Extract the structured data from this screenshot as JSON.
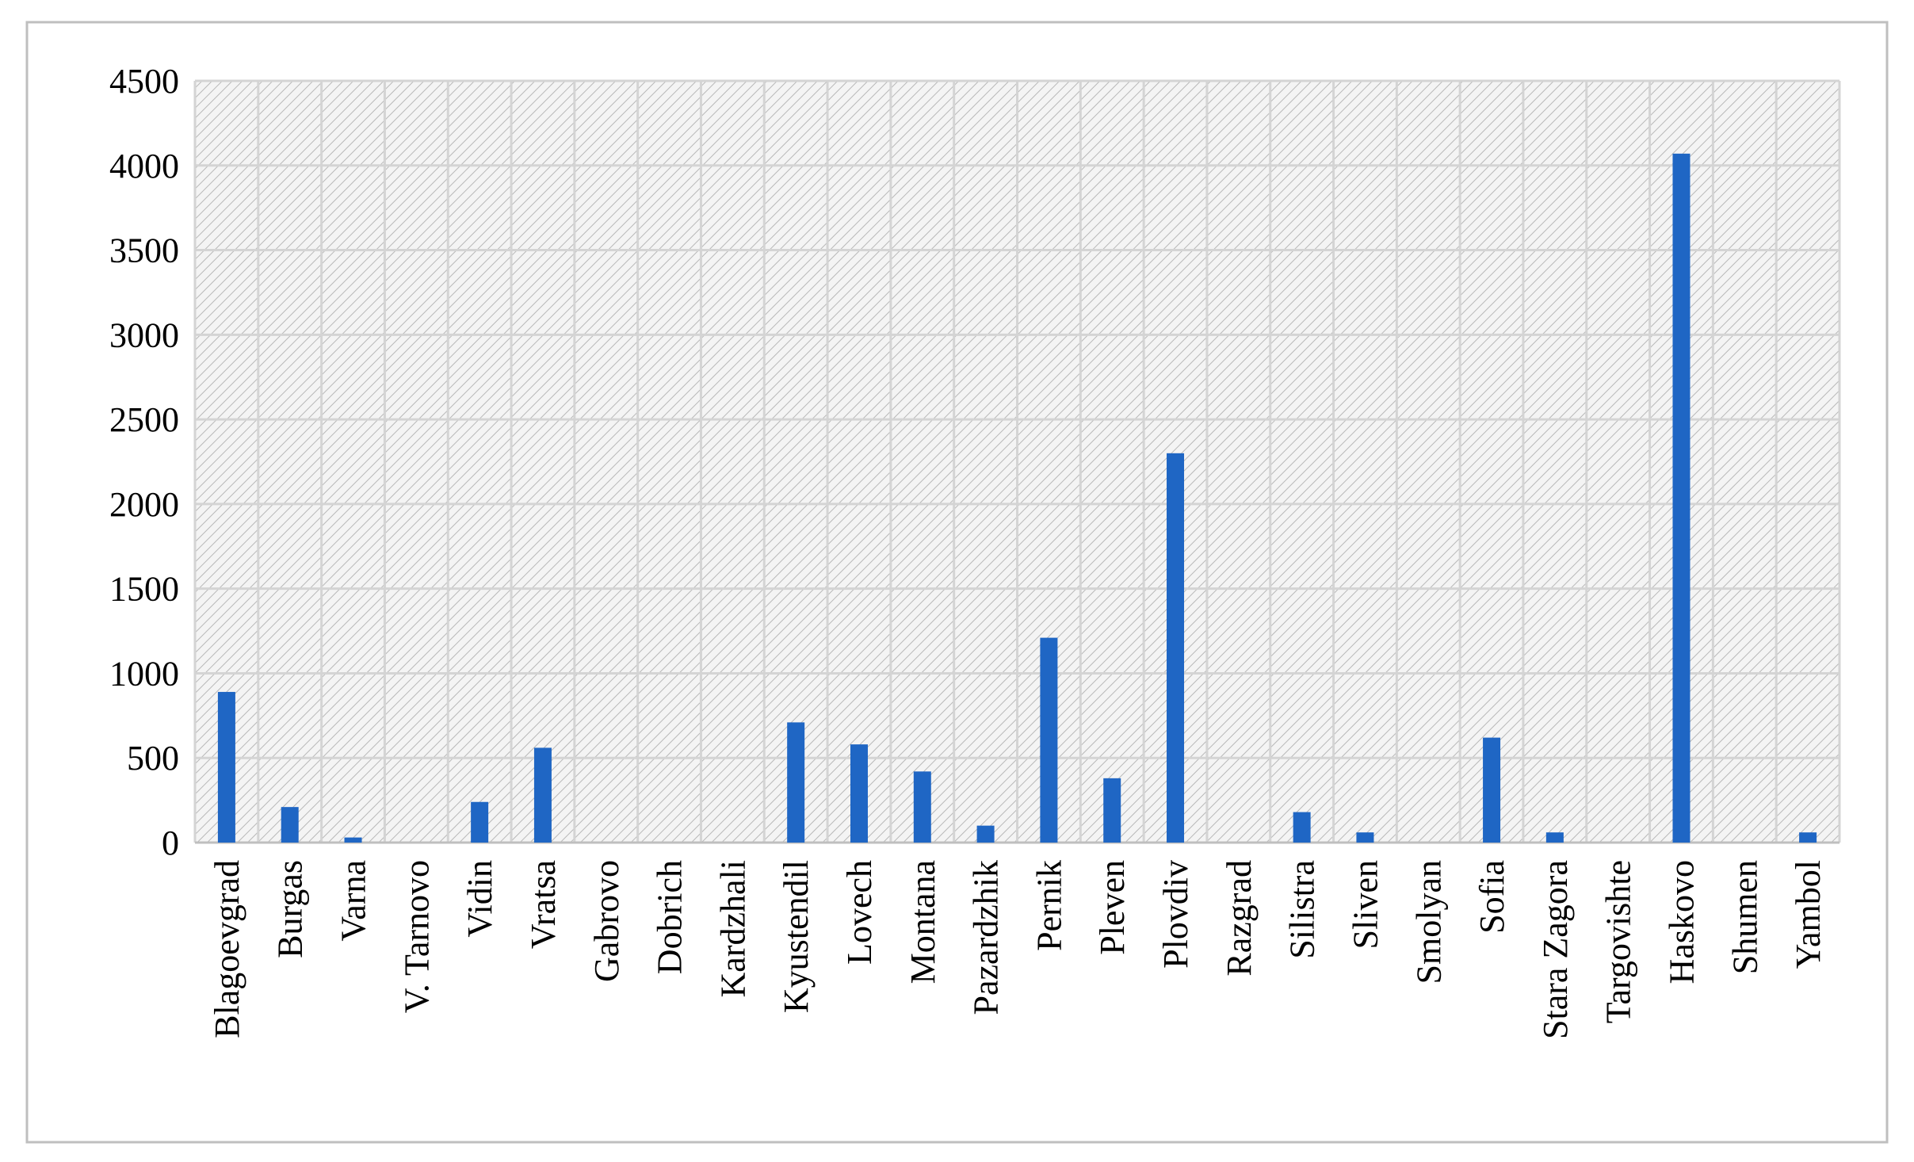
{
  "chart_data": {
    "type": "bar",
    "categories": [
      "Blagoevgrad",
      "Burgas",
      "Varna",
      "V. Tarnovo",
      "Vidin",
      "Vratsa",
      "Gabrovo",
      "Dobrich",
      "Kardzhali",
      "Kyustendil",
      "Lovech",
      "Montana",
      "Pazardzhik",
      "Pernik",
      "Pleven",
      "Plovdiv",
      "Razgrad",
      "Silistra",
      "Sliven",
      "Smolyan",
      "Sofia",
      "Stara Zagora",
      "Targovishte",
      "Haskovo",
      "Shumen",
      "Yambol"
    ],
    "values": [
      890,
      210,
      30,
      0,
      240,
      560,
      0,
      0,
      0,
      710,
      580,
      420,
      100,
      1210,
      380,
      2300,
      0,
      180,
      60,
      0,
      620,
      60,
      0,
      4070,
      0,
      60
    ],
    "color": "#1f66c4",
    "ylim": [
      0,
      4500
    ],
    "yticks": [
      0,
      500,
      1000,
      1500,
      2000,
      2500,
      3000,
      3500,
      4000,
      4500
    ],
    "grid": true
  }
}
